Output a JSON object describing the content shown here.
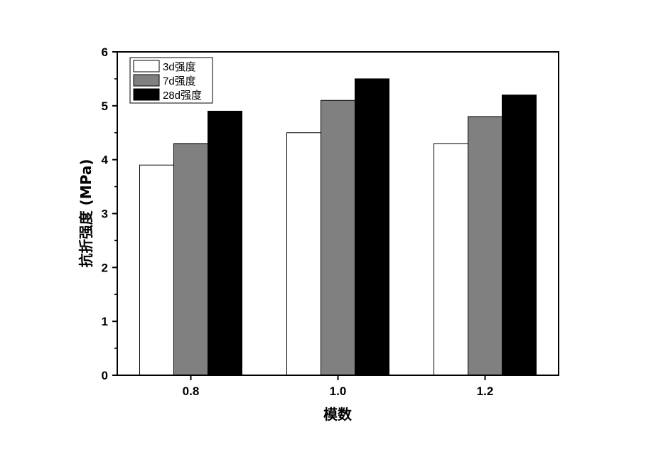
{
  "chart_data": {
    "type": "bar",
    "title": "",
    "xlabel": "模数",
    "ylabel": "抗折强度 (MPa)",
    "categories": [
      "0.8",
      "1.0",
      "1.2"
    ],
    "series": [
      {
        "name": "3d强度",
        "values": [
          3.9,
          4.5,
          4.3
        ],
        "color": "#FFFFFF"
      },
      {
        "name": "7d强度",
        "values": [
          4.3,
          5.1,
          4.8
        ],
        "color": "#808080"
      },
      {
        "name": "28d强度",
        "values": [
          4.9,
          5.5,
          5.2
        ],
        "color": "#000000"
      }
    ],
    "ylim": [
      0,
      6
    ],
    "yticks": [
      "0",
      "1",
      "2",
      "3",
      "4",
      "5",
      "6"
    ],
    "grid": false,
    "legend": "top-left"
  }
}
